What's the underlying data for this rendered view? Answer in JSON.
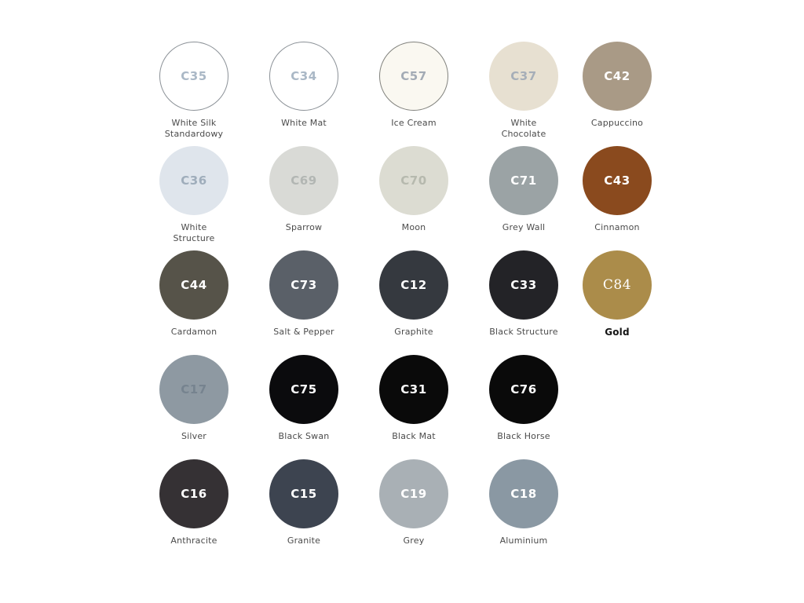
{
  "page": {
    "background": "#ffffff",
    "description_text": ""
  },
  "swatches": {
    "rows": [
      {
        "items": [
          {
            "code": "C35",
            "name": "White Silk\nStandardowy",
            "fill": "#ffffff",
            "border": "#8b9197",
            "code_color": "#aab8c6"
          },
          {
            "code": "C34",
            "name": "White Mat",
            "fill": "#ffffff",
            "border": "#8b9197",
            "code_color": "#aab8c6"
          },
          {
            "code": "C57",
            "name": "Ice Cream",
            "fill": "#faf8f1",
            "border": "#81827d",
            "code_color": "#a3abb5"
          },
          {
            "code": "C37",
            "name": "White\nChocolate",
            "fill": "#e7e0d1",
            "border": null,
            "code_color": "#a6aeb8"
          },
          {
            "code": "C42",
            "name": "Cappuccino",
            "fill": "#a99a86",
            "border": null,
            "code_color": "#ffffff"
          }
        ]
      },
      {
        "items": [
          {
            "code": "C36",
            "name": "White\nStructure",
            "fill": "#dfe5ec",
            "border": null,
            "code_color": "#9fadbb"
          },
          {
            "code": "C69",
            "name": "Sparrow",
            "fill": "#d9dad6",
            "border": null,
            "code_color": "#b2b6b3"
          },
          {
            "code": "C70",
            "name": "Moon",
            "fill": "#dcdcd2",
            "border": null,
            "code_color": "#b6b9ae"
          },
          {
            "code": "C71",
            "name": "Grey Wall",
            "fill": "#9ba3a5",
            "border": null,
            "code_color": "#ffffff"
          },
          {
            "code": "C43",
            "name": "Cinnamon",
            "fill": "#8a4a1e",
            "border": null,
            "code_color": "#ffffff"
          }
        ]
      },
      {
        "items": [
          {
            "code": "C44",
            "name": "Cardamon",
            "fill": "#565349",
            "border": null,
            "code_color": "#ffffff"
          },
          {
            "code": "C73",
            "name": "Salt & Pepper",
            "fill": "#5a6068",
            "border": null,
            "code_color": "#ffffff"
          },
          {
            "code": "C12",
            "name": "Graphite",
            "fill": "#35393f",
            "border": null,
            "code_color": "#ffffff"
          },
          {
            "code": "C33",
            "name": "Black Structure",
            "fill": "#232327",
            "border": null,
            "code_color": "#ffffff"
          },
          {
            "code": "C84",
            "name": "Gold",
            "fill": "#ab8c4a",
            "border": null,
            "code_color": "#ffffff",
            "code_serif": true,
            "label_bold": true
          }
        ]
      },
      {
        "items": [
          {
            "code": "C17",
            "name": "Silver",
            "fill": "#8e99a2",
            "border": null,
            "code_color": "#76838f"
          },
          {
            "code": "C75",
            "name": "Black Swan",
            "fill": "#0b0b0d",
            "border": null,
            "code_color": "#ffffff"
          },
          {
            "code": "C31",
            "name": "Black Mat",
            "fill": "#0a0a0a",
            "border": null,
            "code_color": "#ffffff"
          },
          {
            "code": "C76",
            "name": "Black Horse",
            "fill": "#0a0a0a",
            "border": null,
            "code_color": "#ffffff"
          }
        ]
      },
      {
        "items": [
          {
            "code": "C16",
            "name": "Anthracite",
            "fill": "#353134",
            "border": null,
            "code_color": "#ffffff"
          },
          {
            "code": "C15",
            "name": "Granite",
            "fill": "#3d4450",
            "border": null,
            "code_color": "#ffffff"
          },
          {
            "code": "C19",
            "name": "Grey",
            "fill": "#a9b0b5",
            "border": null,
            "code_color": "#ffffff"
          },
          {
            "code": "C18",
            "name": "Aluminium",
            "fill": "#8a98a3",
            "border": null,
            "code_color": "#ffffff"
          }
        ]
      }
    ]
  }
}
